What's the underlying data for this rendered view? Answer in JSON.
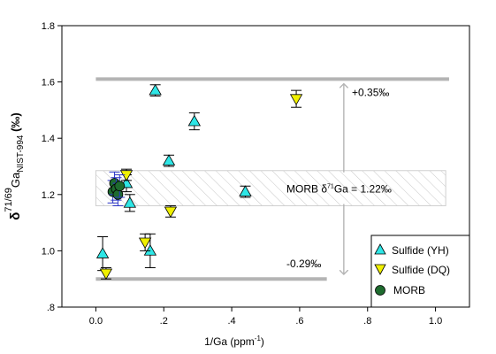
{
  "chart_data": {
    "type": "scatter",
    "xlabel": {
      "main": "1/Ga (ppm",
      "sup": "-1",
      "end": ")"
    },
    "ylabel": {
      "pre": "δ",
      "sup": "71/69",
      "main": "Ga",
      "sub": "NIST-994",
      "end": " (‰)"
    },
    "xlim": [
      -0.1,
      1.1
    ],
    "ylim": [
      0.8,
      1.8
    ],
    "x_ticks": [
      {
        "value": 0.0,
        "label": "0.0"
      },
      {
        "value": 0.2,
        "label": ".2"
      },
      {
        "value": 0.4,
        "label": ".4"
      },
      {
        "value": 0.6,
        "label": ".6"
      },
      {
        "value": 0.8,
        "label": ".8"
      },
      {
        "value": 1.0,
        "label": "1.0"
      }
    ],
    "y_ticks": [
      {
        "value": 0.8,
        "label": ".8"
      },
      {
        "value": 1.0,
        "label": "1.0"
      },
      {
        "value": 1.2,
        "label": "1.2"
      },
      {
        "value": 1.4,
        "label": "1.4"
      },
      {
        "value": 1.6,
        "label": "1.6"
      },
      {
        "value": 1.8,
        "label": "1.8"
      }
    ],
    "grid": false,
    "legend_position": "bottom-right",
    "reference_band": {
      "y_low": 1.16,
      "y_high": 1.285,
      "x_from": 0.0,
      "x_to": 1.03,
      "hatched": true
    },
    "reference_lines": [
      {
        "y": 1.61,
        "x_from": 0.0,
        "x_to": 1.04,
        "label": "+0.35‰"
      },
      {
        "y": 0.9,
        "x_from": 0.0,
        "x_to": 0.68,
        "label": "-0.29‰"
      }
    ],
    "band_label": {
      "pre": "MORB δ",
      "sup": "71",
      "post": "Ga = 1.22‰"
    },
    "range_arrow": {
      "x": 0.73,
      "y_top": 1.6,
      "y_bottom": 0.91
    },
    "series": [
      {
        "name": "Sulfide (YH)",
        "marker": "triangle-up",
        "color": "#2ee6e6",
        "points": [
          {
            "x": 0.02,
            "y": 0.99,
            "err": 0.06
          },
          {
            "x": 0.09,
            "y": 1.24,
            "err": 0.03
          },
          {
            "x": 0.1,
            "y": 1.17,
            "err": 0.03
          },
          {
            "x": 0.16,
            "y": 1.0,
            "err": 0.06
          },
          {
            "x": 0.175,
            "y": 1.57,
            "err": 0.02
          },
          {
            "x": 0.215,
            "y": 1.32,
            "err": 0.02
          },
          {
            "x": 0.29,
            "y": 1.46,
            "err": 0.03
          },
          {
            "x": 0.44,
            "y": 1.21,
            "err": 0.02
          }
        ]
      },
      {
        "name": "Sulfide (DQ)",
        "marker": "triangle-down",
        "color": "#f0f000",
        "points": [
          {
            "x": 0.03,
            "y": 0.92,
            "err": 0.02
          },
          {
            "x": 0.09,
            "y": 1.27,
            "err": 0.02
          },
          {
            "x": 0.145,
            "y": 1.03,
            "err": 0.03
          },
          {
            "x": 0.22,
            "y": 1.14,
            "err": 0.02
          },
          {
            "x": 0.59,
            "y": 1.54,
            "err": 0.03
          }
        ]
      },
      {
        "name": "MORB",
        "marker": "circle",
        "color": "#1e6b2e",
        "error_color": "#2b35c7",
        "points": [
          {
            "x": 0.05,
            "y": 1.21,
            "err": 0.04
          },
          {
            "x": 0.055,
            "y": 1.24,
            "err": 0.04
          },
          {
            "x": 0.06,
            "y": 1.22,
            "err": 0.04
          },
          {
            "x": 0.065,
            "y": 1.2,
            "err": 0.04
          },
          {
            "x": 0.07,
            "y": 1.23,
            "err": 0.04
          }
        ]
      }
    ]
  }
}
